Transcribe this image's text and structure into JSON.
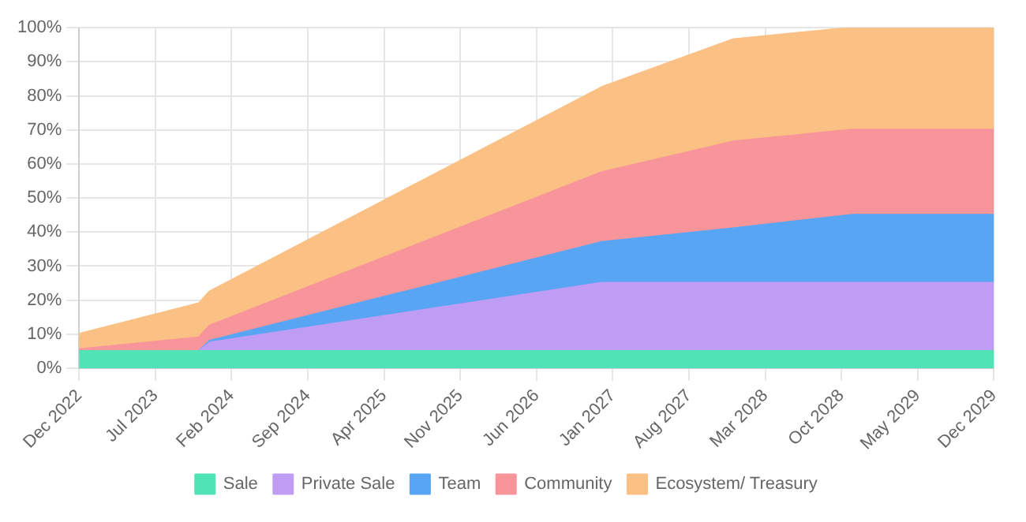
{
  "chart_data": {
    "type": "area",
    "stacked": true,
    "grid": true,
    "legend": "bottom",
    "marker": "none",
    "x": [
      "2022-12",
      "2023-11",
      "2023-12",
      "2026-12",
      "2027-12",
      "2028-11",
      "2029-12"
    ],
    "series": [
      {
        "name": "Sale",
        "color": "#50e3b5",
        "values": [
          5,
          5,
          5,
          5,
          5,
          5,
          5
        ]
      },
      {
        "name": "Private Sale",
        "color": "#c09df5",
        "values": [
          0,
          0,
          2.5,
          20,
          20,
          20,
          20
        ]
      },
      {
        "name": "Team",
        "color": "#58a5f4",
        "values": [
          0,
          0,
          0.5,
          12,
          16,
          20,
          20
        ]
      },
      {
        "name": "Community",
        "color": "#f7959a",
        "values": [
          0.5,
          4,
          4.5,
          20.5,
          25.5,
          25,
          25
        ]
      },
      {
        "name": "Ecosystem/ Treasury",
        "color": "#fbc084",
        "values": [
          4.5,
          10,
          10,
          25,
          30,
          30,
          30
        ]
      }
    ],
    "xlim": [
      "2022-12",
      "2029-12"
    ],
    "xticks": [
      {
        "value": "2022-12",
        "label": "Dec 2022"
      },
      {
        "value": "2023-07",
        "label": "Jul 2023"
      },
      {
        "value": "2024-02",
        "label": "Feb 2024"
      },
      {
        "value": "2024-09",
        "label": "Sep 2024"
      },
      {
        "value": "2025-04",
        "label": "Apr 2025"
      },
      {
        "value": "2025-11",
        "label": "Nov 2025"
      },
      {
        "value": "2026-06",
        "label": "Jun 2026"
      },
      {
        "value": "2027-01",
        "label": "Jan 2027"
      },
      {
        "value": "2027-08",
        "label": "Aug 2027"
      },
      {
        "value": "2028-03",
        "label": "Mar 2028"
      },
      {
        "value": "2028-10",
        "label": "Oct 2028"
      },
      {
        "value": "2029-05",
        "label": "May 2029"
      },
      {
        "value": "2029-12",
        "label": "Dec 2029"
      }
    ],
    "ylim": [
      0,
      100
    ],
    "yticks": [
      {
        "value": 0,
        "label": "0%"
      },
      {
        "value": 10,
        "label": "10%"
      },
      {
        "value": 20,
        "label": "20%"
      },
      {
        "value": 30,
        "label": "30%"
      },
      {
        "value": 40,
        "label": "40%"
      },
      {
        "value": 50,
        "label": "50%"
      },
      {
        "value": 60,
        "label": "60%"
      },
      {
        "value": 70,
        "label": "70%"
      },
      {
        "value": 80,
        "label": "80%"
      },
      {
        "value": 90,
        "label": "90%"
      },
      {
        "value": 100,
        "label": "100%"
      }
    ]
  }
}
